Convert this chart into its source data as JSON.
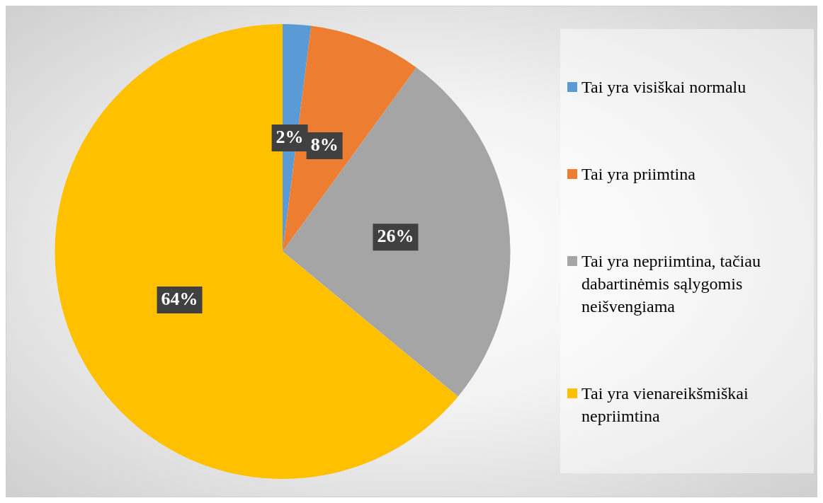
{
  "chart_data": {
    "type": "pie",
    "categories": [
      "Tai yra visiškai normalu",
      "Tai yra priimtina",
      "Tai yra nepriimtina, tačiau dabartinėmis sąlygomis neišvengiama",
      "Tai yra vienareikšmiškai nepriimtina"
    ],
    "values": [
      2,
      8,
      26,
      64
    ],
    "colors": [
      "#5b9bd5",
      "#ed7d31",
      "#a5a5a5",
      "#ffc000"
    ],
    "value_labels": [
      "2%",
      "8%",
      "26%",
      "64%"
    ],
    "legend": "right"
  }
}
